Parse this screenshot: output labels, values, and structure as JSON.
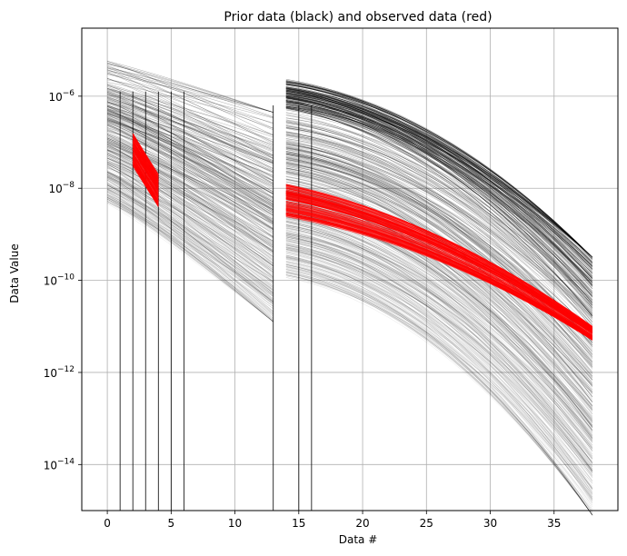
{
  "chart_data": {
    "type": "line",
    "title": "Prior data (black) and observed data (red)",
    "xlabel": "Data #",
    "ylabel": "Data Value",
    "xlim": [
      -2,
      40
    ],
    "ylim": [
      1e-15,
      3e-05
    ],
    "yscale": "log",
    "grid": true,
    "x_ticks": [
      0,
      5,
      10,
      15,
      20,
      25,
      30,
      35
    ],
    "y_ticks": [
      {
        "value": 1e-14,
        "base": "10",
        "exp": "−14"
      },
      {
        "value": 1e-12,
        "base": "10",
        "exp": "−12"
      },
      {
        "value": 1e-10,
        "base": "10",
        "exp": "−10"
      },
      {
        "value": 1e-08,
        "base": "10",
        "exp": "−8"
      },
      {
        "value": 1e-06,
        "base": "10",
        "exp": "−6"
      }
    ],
    "series": [
      {
        "role": "prior",
        "color": "#000000",
        "segment_1": {
          "x_start": 0,
          "x_end": 13,
          "log10_start_range": [
            -8.3,
            -5.15
          ],
          "log10_end_range": [
            -10.9,
            -6.35
          ]
        },
        "segment_2": {
          "x_start": 14,
          "x_end": 38,
          "log10_start_range": [
            -9.9,
            -5.65
          ],
          "log10_end_range": [
            -15.1,
            -9.5
          ]
        },
        "dropout_columns_x": [
          1,
          2,
          3,
          4,
          5,
          6,
          13,
          15,
          16
        ]
      },
      {
        "role": "observed",
        "color": "#ff0000",
        "segment_1": {
          "x_start": 2,
          "x_end": 4,
          "log10_start_range": [
            -7.5,
            -6.8
          ],
          "log10_end_range": [
            -8.4,
            -7.7
          ]
        },
        "segment_2": {
          "x_start": 14,
          "x_end": 38,
          "log10_start_range": [
            -8.6,
            -7.9
          ],
          "log10_end_range": [
            -11.3,
            -11.0
          ]
        }
      }
    ]
  }
}
